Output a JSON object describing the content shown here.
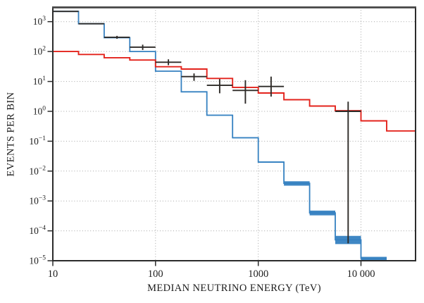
{
  "figure": {
    "xlabel": "MEDIAN NEUTRINO ENERGY (TeV)",
    "ylabel": "EVENTS PER BIN"
  },
  "style": {
    "background": "#ffffff",
    "spine_color": "#2b2b2b",
    "spine_top_color": "#454545",
    "grid_color": "#a6a6a6",
    "tick_color": "#2b2b2b",
    "label_color": "#1c1c1c",
    "red": "#e3231c",
    "blue": "#3581c1",
    "black": "#2e2b28"
  },
  "chart_data": {
    "type": "step-histogram",
    "title": "",
    "xlabel": "MEDIAN NEUTRINO ENERGY (TeV)",
    "ylabel": "EVENTS PER BIN",
    "x_axis": {
      "scale": "log",
      "min": 10,
      "max": 34000,
      "ticks": [
        {
          "value": 10,
          "label": "10"
        },
        {
          "value": 100,
          "label": "100"
        },
        {
          "value": 1000,
          "label": "1000"
        },
        {
          "value": 10000,
          "label": "10 000"
        }
      ],
      "gridlines_at": [
        100,
        1000,
        10000
      ]
    },
    "y_axis": {
      "scale": "log",
      "min": 1e-05,
      "max": 3000,
      "ticks": [
        {
          "value": 1000,
          "exp_label": "3"
        },
        {
          "value": 100,
          "exp_label": "2"
        },
        {
          "value": 10,
          "exp_label": "1"
        },
        {
          "value": 1,
          "exp_label": "0"
        },
        {
          "value": 0.1,
          "exp_label": "−1"
        },
        {
          "value": 0.01,
          "exp_label": "−2"
        },
        {
          "value": 0.001,
          "exp_label": "−3"
        },
        {
          "value": 0.0001,
          "exp_label": "−4"
        },
        {
          "value": 1e-05,
          "exp_label": "−5"
        }
      ],
      "gridlines_at": [
        1000,
        100,
        10,
        1,
        0.1,
        0.01,
        0.001,
        0.0001
      ]
    },
    "bin_edges_tev": [
      10,
      17.8,
      31.6,
      56.2,
      100,
      178,
      316,
      562,
      1000,
      1778,
      3162,
      5623,
      10000,
      17783,
      31623
    ],
    "series": [
      {
        "name": "astrophysical-prediction",
        "type": "step",
        "color": "#e3231c",
        "extend_to_xmax": true,
        "values": [
          100,
          80,
          62,
          52,
          31,
          26,
          12.6,
          6.3,
          4.1,
          2.45,
          1.5,
          1.05,
          0.48,
          0.22
        ]
      },
      {
        "name": "atmospheric-background",
        "type": "step-band",
        "color": "#3581c1",
        "values": [
          2200,
          850,
          290,
          100,
          22,
          4.5,
          0.74,
          0.13,
          0.02,
          0.0039,
          0.0004,
          5e-05,
          1.2e-05
        ],
        "band_lo": [
          2150,
          835,
          284,
          98,
          21.5,
          4.38,
          0.715,
          0.125,
          0.019,
          0.00325,
          0.00033,
          3.6e-05,
          1.05e-05
        ],
        "band_hi": [
          2250,
          865,
          296,
          102,
          22.5,
          4.62,
          0.765,
          0.135,
          0.021,
          0.00455,
          0.000475,
          6.8e-05,
          1.35e-05
        ]
      },
      {
        "name": "observed-data",
        "type": "errorbar",
        "color": "#2e2b28",
        "points": [
          {
            "bin": [
              10,
              17.8
            ],
            "y": 2200,
            "lo": 2150,
            "hi": 2250
          },
          {
            "bin": [
              17.8,
              31.6
            ],
            "y": 850,
            "lo": 820,
            "hi": 880
          },
          {
            "bin": [
              31.6,
              56.2
            ],
            "y": 300,
            "lo": 268,
            "hi": 335
          },
          {
            "bin": [
              56.2,
              100
            ],
            "y": 140,
            "lo": 113,
            "hi": 170
          },
          {
            "bin": [
              100,
              178
            ],
            "y": 44,
            "lo": 35,
            "hi": 55
          },
          {
            "bin": [
              178,
              316
            ],
            "y": 14.5,
            "lo": 10.5,
            "hi": 18.5
          },
          {
            "bin": [
              316,
              562
            ],
            "y": 7.4,
            "lo": 4.0,
            "hi": 12.0
          },
          {
            "bin": [
              562,
              1000
            ],
            "y": 5.0,
            "lo": 1.8,
            "hi": 11.0
          },
          {
            "bin": [
              1000,
              1778
            ],
            "y": 6.8,
            "lo": 3.1,
            "hi": 14.5
          },
          {
            "bin": [
              5623,
              10000
            ],
            "y": 1.0,
            "lo": 3.8e-05,
            "hi": 2.1
          }
        ]
      }
    ]
  }
}
